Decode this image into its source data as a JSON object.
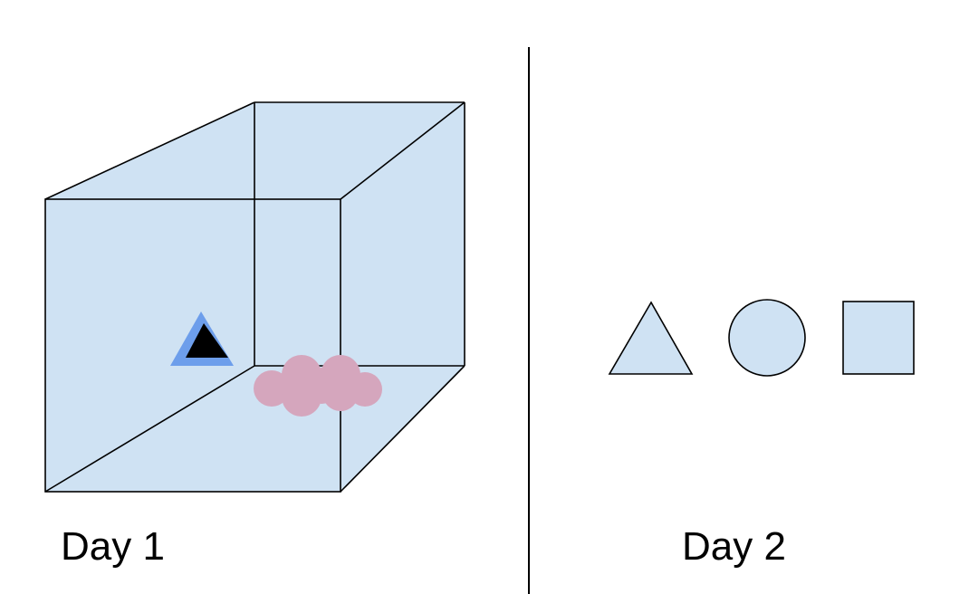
{
  "colors": {
    "shape_fill": "#cfe2f3",
    "outline": "#000000",
    "triangle_accent": "#6d9eeb",
    "triangle_inner": "#000000",
    "cloud": "#d5a6bd",
    "background": "#ffffff",
    "divider": "#000000"
  },
  "panels": [
    {
      "id": "day-1",
      "caption": "Day 1",
      "content": [
        "transparent-box",
        "triangle-token",
        "cloud-shape"
      ]
    },
    {
      "id": "day-2",
      "caption": "Day 2",
      "content": [
        "triangle-shape",
        "circle-shape",
        "square-shape"
      ]
    }
  ]
}
